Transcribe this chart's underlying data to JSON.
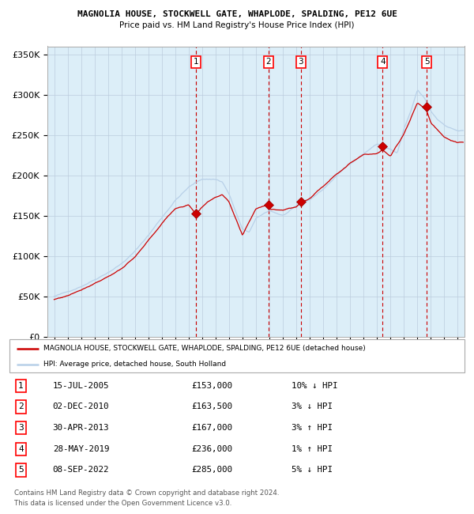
{
  "title1": "MAGNOLIA HOUSE, STOCKWELL GATE, WHAPLODE, SPALDING, PE12 6UE",
  "title2": "Price paid vs. HM Land Registry's House Price Index (HPI)",
  "ylabel_ticks": [
    "£0",
    "£50K",
    "£100K",
    "£150K",
    "£200K",
    "£250K",
    "£300K",
    "£350K"
  ],
  "ytick_values": [
    0,
    50000,
    100000,
    150000,
    200000,
    250000,
    300000,
    350000
  ],
  "ylim": [
    0,
    360000
  ],
  "xlim_start": 1994.5,
  "xlim_end": 2025.5,
  "sales": [
    {
      "label": "1",
      "date": "15-JUL-2005",
      "year": 2005.54,
      "price": 153000,
      "hpi_rel": "10% ↓ HPI"
    },
    {
      "label": "2",
      "date": "02-DEC-2010",
      "year": 2010.92,
      "price": 163500,
      "hpi_rel": "3% ↓ HPI"
    },
    {
      "label": "3",
      "date": "30-APR-2013",
      "year": 2013.33,
      "price": 167000,
      "hpi_rel": "3% ↑ HPI"
    },
    {
      "label": "4",
      "date": "28-MAY-2019",
      "year": 2019.41,
      "price": 236000,
      "hpi_rel": "1% ↑ HPI"
    },
    {
      "label": "5",
      "date": "08-SEP-2022",
      "year": 2022.69,
      "price": 285000,
      "hpi_rel": "5% ↓ HPI"
    }
  ],
  "legend_line1": "MAGNOLIA HOUSE, STOCKWELL GATE, WHAPLODE, SPALDING, PE12 6UE (detached house)",
  "legend_line2": "HPI: Average price, detached house, South Holland",
  "footer1": "Contains HM Land Registry data © Crown copyright and database right 2024.",
  "footer2": "This data is licensed under the Open Government Licence v3.0.",
  "hpi_color": "#b8d0e8",
  "sale_color": "#cc0000",
  "bg_color": "#dceef8",
  "grid_color": "#bbccdd",
  "vline_color_sale": "#cc0000",
  "vline_color_grey": "#999999"
}
